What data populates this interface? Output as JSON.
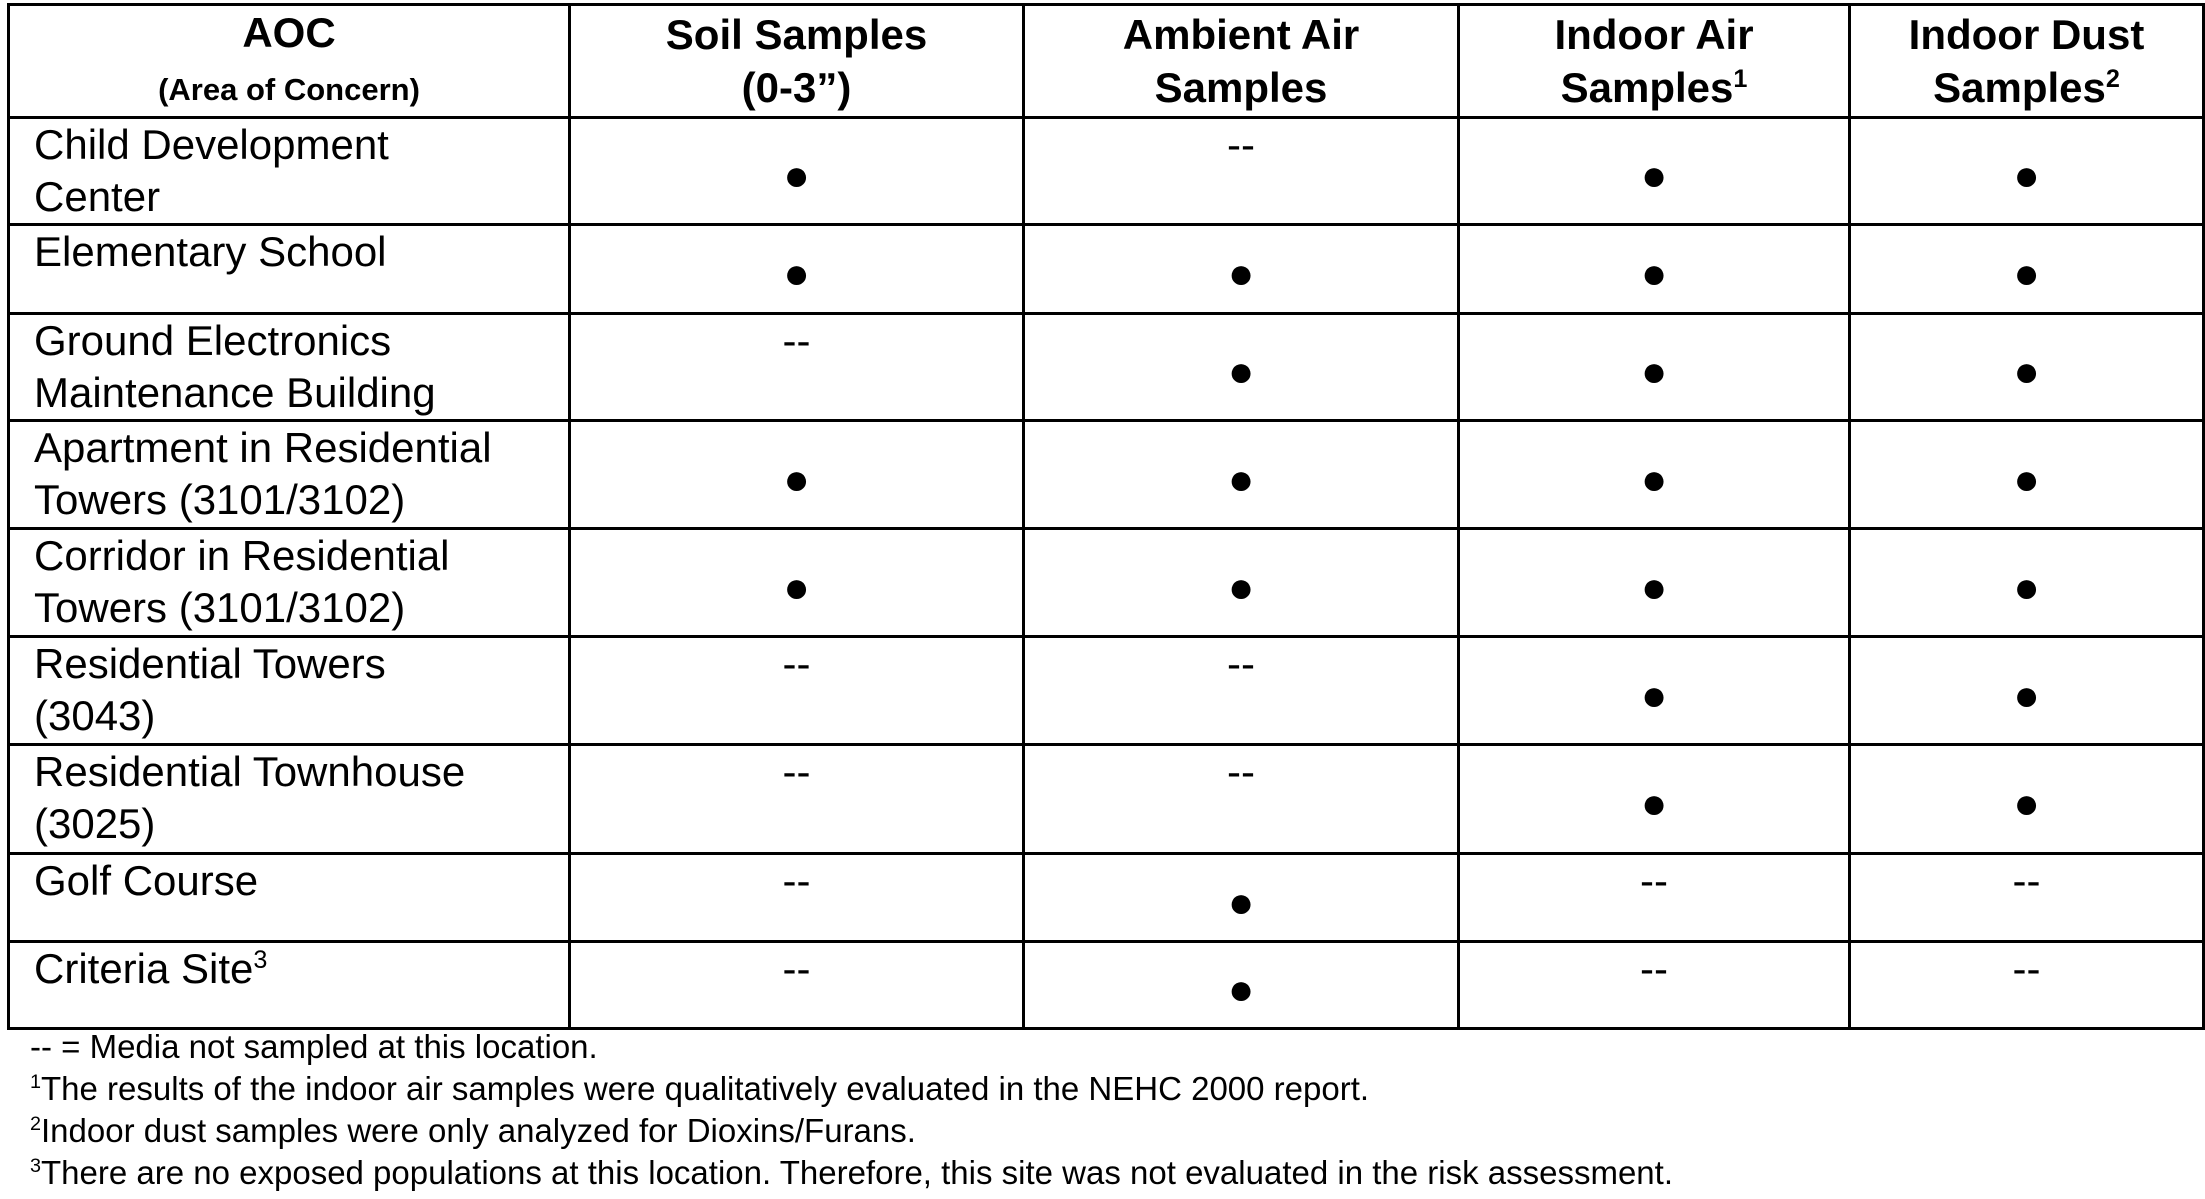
{
  "table": {
    "header": [
      {
        "lines": [
          "AOC",
          "(Area of Concern)"
        ]
      },
      {
        "lines": [
          "Soil Samples",
          "(0-3”)"
        ]
      },
      {
        "lines": [
          "Ambient Air",
          "Samples"
        ]
      },
      {
        "lines": [
          "Indoor Air",
          "Samples"
        ],
        "note": "1"
      },
      {
        "lines": [
          "Indoor Dust",
          "Samples"
        ],
        "note": "2"
      }
    ],
    "rows": [
      {
        "aoc": [
          "Child Development",
          "Center"
        ],
        "cells": [
          "●",
          "--",
          "●",
          "●"
        ]
      },
      {
        "aoc": [
          "Elementary School"
        ],
        "cells": [
          "●",
          "●",
          "●",
          "●"
        ]
      },
      {
        "aoc": [
          "Ground Electronics",
          "Maintenance Building"
        ],
        "cells": [
          "--",
          "●",
          "●",
          "●"
        ]
      },
      {
        "aoc": [
          "Apartment in Residential",
          "Towers (3101/3102)"
        ],
        "cells": [
          "●",
          "●",
          "●",
          "●"
        ]
      },
      {
        "aoc": [
          "Corridor in Residential",
          "Towers (3101/3102)"
        ],
        "cells": [
          "●",
          "●",
          "●",
          "●"
        ]
      },
      {
        "aoc": [
          "Residential Towers",
          "(3043)"
        ],
        "cells": [
          "--",
          "--",
          "●",
          "●"
        ]
      },
      {
        "aoc": [
          "Residential Townhouse",
          "(3025)"
        ],
        "cells": [
          "--",
          "--",
          "●",
          "●"
        ]
      },
      {
        "aoc": [
          "Golf Course"
        ],
        "cells": [
          "--",
          "●",
          "--",
          "--"
        ]
      },
      {
        "aoc": [
          "Criteria Site"
        ],
        "note": "3",
        "cells": [
          "--",
          "●",
          "--",
          "--"
        ]
      }
    ]
  },
  "footnotes": [
    {
      "text": "-- = Media not sampled at this location."
    },
    {
      "mark": "1",
      "text": "The results of the indoor air samples were qualitatively evaluated in the NEHC 2000 report."
    },
    {
      "mark": "2",
      "text": "Indoor dust samples were only analyzed for Dioxins/Furans."
    },
    {
      "mark": "3",
      "text": "There are no exposed populations at this location.  Therefore, this site was not evaluated in the risk assessment."
    }
  ]
}
